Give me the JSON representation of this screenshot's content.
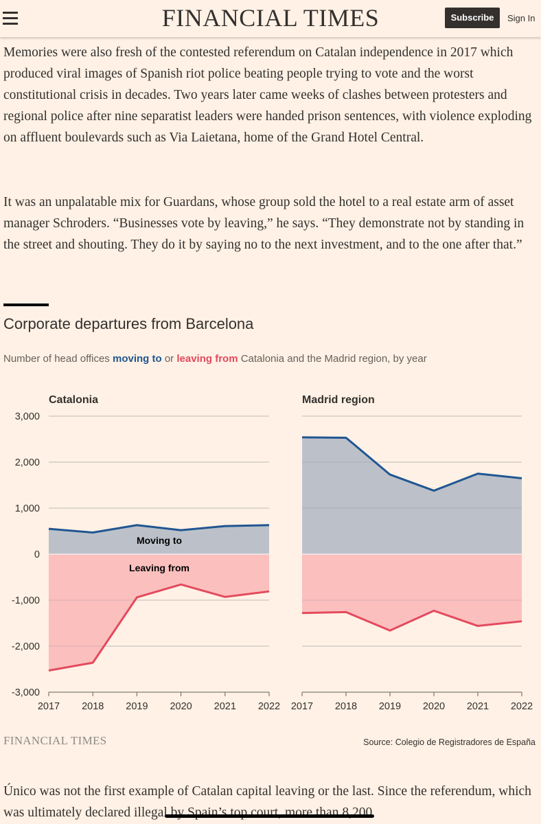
{
  "header": {
    "masthead": "FINANCIAL TIMES",
    "subscribe_label": "Subscribe",
    "signin_label": "Sign In",
    "menu_icon": "hamburger-icon"
  },
  "article": {
    "para1": "Memories were also fresh of the contested referendum on Catalan independence in 2017 which produced viral images of Spanish riot police beating people trying to vote and the worst constitutional crisis in decades. Two years later came weeks of clashes between protesters and regional police after nine separatist leaders were handed prison sentences, with violence exploding on affluent boulevards such as Via Laietana, home of the Grand Hotel Central.",
    "para2": "It was an unpalatable mix for Guardans, whose group sold the hotel to a real estate arm of asset manager Schroders. “Businesses vote by leaving,” he says. “They demonstrate not by standing in the street and shouting. They do it by saying no to the next investment, and to the one after that.”",
    "para3": "Único was not the first example of Catalan capital leaving or the last. Since the referendum, which was ultimately declared illegal by Spain’s top court, more than 8,200"
  },
  "chart_section": {
    "title": "Corporate departures from Barcelona",
    "subtitle_prefix": "Number of head offices ",
    "subtitle_moving": "moving to",
    "subtitle_or": " or ",
    "subtitle_leaving": "leaving from",
    "subtitle_suffix": " Catalonia and the Madrid region, by year",
    "footer_logo": "FINANCIAL TIMES",
    "source": "Source: Colegio de Registradores de España"
  },
  "chart_data": {
    "type": "area",
    "colors": {
      "moving_line": "#1f5692",
      "moving_fill": "#bcc1c9",
      "leaving_line": "#e34a5d",
      "leaving_fill": "#fbbfbe"
    },
    "ylim": [
      -3000,
      3000
    ],
    "yticks": [
      3000,
      2000,
      1000,
      0,
      -1000,
      -2000,
      -3000
    ],
    "ytick_labels": [
      "3,000",
      "2,000",
      "1,000",
      "0",
      "-1,000",
      "-2,000",
      "-3,000"
    ],
    "grid": true,
    "panels": [
      {
        "title": "Catalonia",
        "x": [
          "2017",
          "2018",
          "2019",
          "2020",
          "2021",
          "2022"
        ],
        "annotations": {
          "moving": "Moving to",
          "leaving": "Leaving from"
        },
        "series": [
          {
            "name": "Moving to",
            "values": [
              550,
              470,
              630,
              520,
              610,
              630
            ]
          },
          {
            "name": "Leaving from",
            "values": [
              -2530,
              -2360,
              -940,
              -660,
              -930,
              -810
            ]
          }
        ]
      },
      {
        "title": "Madrid region",
        "x": [
          "2017",
          "2018",
          "2019",
          "2020",
          "2021",
          "2022"
        ],
        "series": [
          {
            "name": "Moving to",
            "values": [
              2540,
              2530,
              1730,
              1380,
              1750,
              1650
            ]
          },
          {
            "name": "Leaving from",
            "values": [
              -1280,
              -1260,
              -1660,
              -1230,
              -1560,
              -1460
            ]
          }
        ]
      }
    ]
  }
}
